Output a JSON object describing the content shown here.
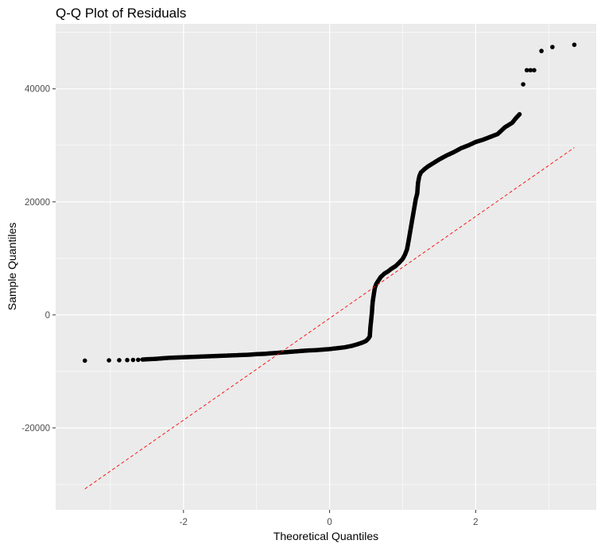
{
  "chart_data": {
    "type": "scatter",
    "title": "Q-Q Plot of Residuals",
    "xlabel": "Theoretical Quantiles",
    "ylabel": "Sample Quantiles",
    "xlim": [
      -3.75,
      3.65
    ],
    "ylim": [
      -34500,
      51500
    ],
    "x_ticks": [
      -2,
      0,
      2
    ],
    "y_ticks": [
      -20000,
      0,
      20000,
      40000
    ],
    "x_tick_labels": [
      "-2",
      "0",
      "2"
    ],
    "y_tick_labels": [
      "-20000",
      "0",
      "20000",
      "40000"
    ],
    "grid": true,
    "background": "#ebebeb",
    "grid_color": "#ffffff",
    "point_color": "#000000",
    "reference_line": {
      "x": [
        -3.35,
        3.35
      ],
      "y": [
        -30800,
        29600
      ],
      "color": "#ff0000",
      "style": "dashed"
    },
    "series": [
      {
        "x": [
          -3.35,
          -3.02,
          -2.88,
          -2.77,
          -2.69,
          -2.62,
          -2.56,
          -2.5,
          -2.4,
          -2.3,
          -2.2,
          -2.1,
          -2.0,
          -1.9,
          -1.8,
          -1.7,
          -1.6,
          -1.5,
          -1.4,
          -1.3,
          -1.2,
          -1.1,
          -1.0,
          -0.9,
          -0.8,
          -0.7,
          -0.6,
          -0.5,
          -0.4,
          -0.3,
          -0.2,
          -0.1,
          0.0,
          0.1,
          0.2,
          0.3,
          0.38,
          0.45,
          0.5,
          0.53,
          0.55,
          0.56,
          0.57,
          0.58,
          0.585,
          0.59,
          0.6,
          0.61,
          0.62,
          0.64,
          0.67,
          0.7,
          0.75,
          0.8,
          0.85,
          0.9,
          0.95,
          1.0,
          1.03,
          1.06,
          1.08,
          1.1,
          1.12,
          1.14,
          1.16,
          1.18,
          1.2,
          1.21,
          1.22,
          1.23,
          1.25,
          1.3,
          1.35,
          1.4,
          1.45,
          1.5,
          1.6,
          1.7,
          1.8,
          1.9,
          2.0,
          2.1,
          2.2,
          2.3,
          2.4,
          2.5,
          2.55,
          2.6,
          2.65,
          2.7,
          2.75,
          2.8,
          2.9,
          3.05,
          3.35
        ],
        "y": [
          -8100,
          -8050,
          -8020,
          -8000,
          -7970,
          -7950,
          -7900,
          -7850,
          -7800,
          -7700,
          -7600,
          -7550,
          -7500,
          -7450,
          -7400,
          -7350,
          -7300,
          -7250,
          -7200,
          -7150,
          -7100,
          -7050,
          -6950,
          -6900,
          -6800,
          -6700,
          -6600,
          -6500,
          -6400,
          -6300,
          -6250,
          -6150,
          -6050,
          -5900,
          -5750,
          -5500,
          -5200,
          -4900,
          -4600,
          -4200,
          -3800,
          -2000,
          -800,
          500,
          1500,
          2300,
          3200,
          4000,
          4800,
          5500,
          6100,
          6700,
          7300,
          7700,
          8200,
          8600,
          9200,
          9900,
          10600,
          11600,
          13000,
          14500,
          16000,
          17500,
          19000,
          20500,
          21500,
          23300,
          24000,
          24600,
          25200,
          25800,
          26300,
          26700,
          27100,
          27500,
          28200,
          28800,
          29500,
          30000,
          30600,
          31000,
          31500,
          32000,
          33200,
          34000,
          34800,
          35500,
          40800,
          43300,
          43300,
          43300,
          46700,
          47400,
          47800
        ]
      }
    ]
  }
}
